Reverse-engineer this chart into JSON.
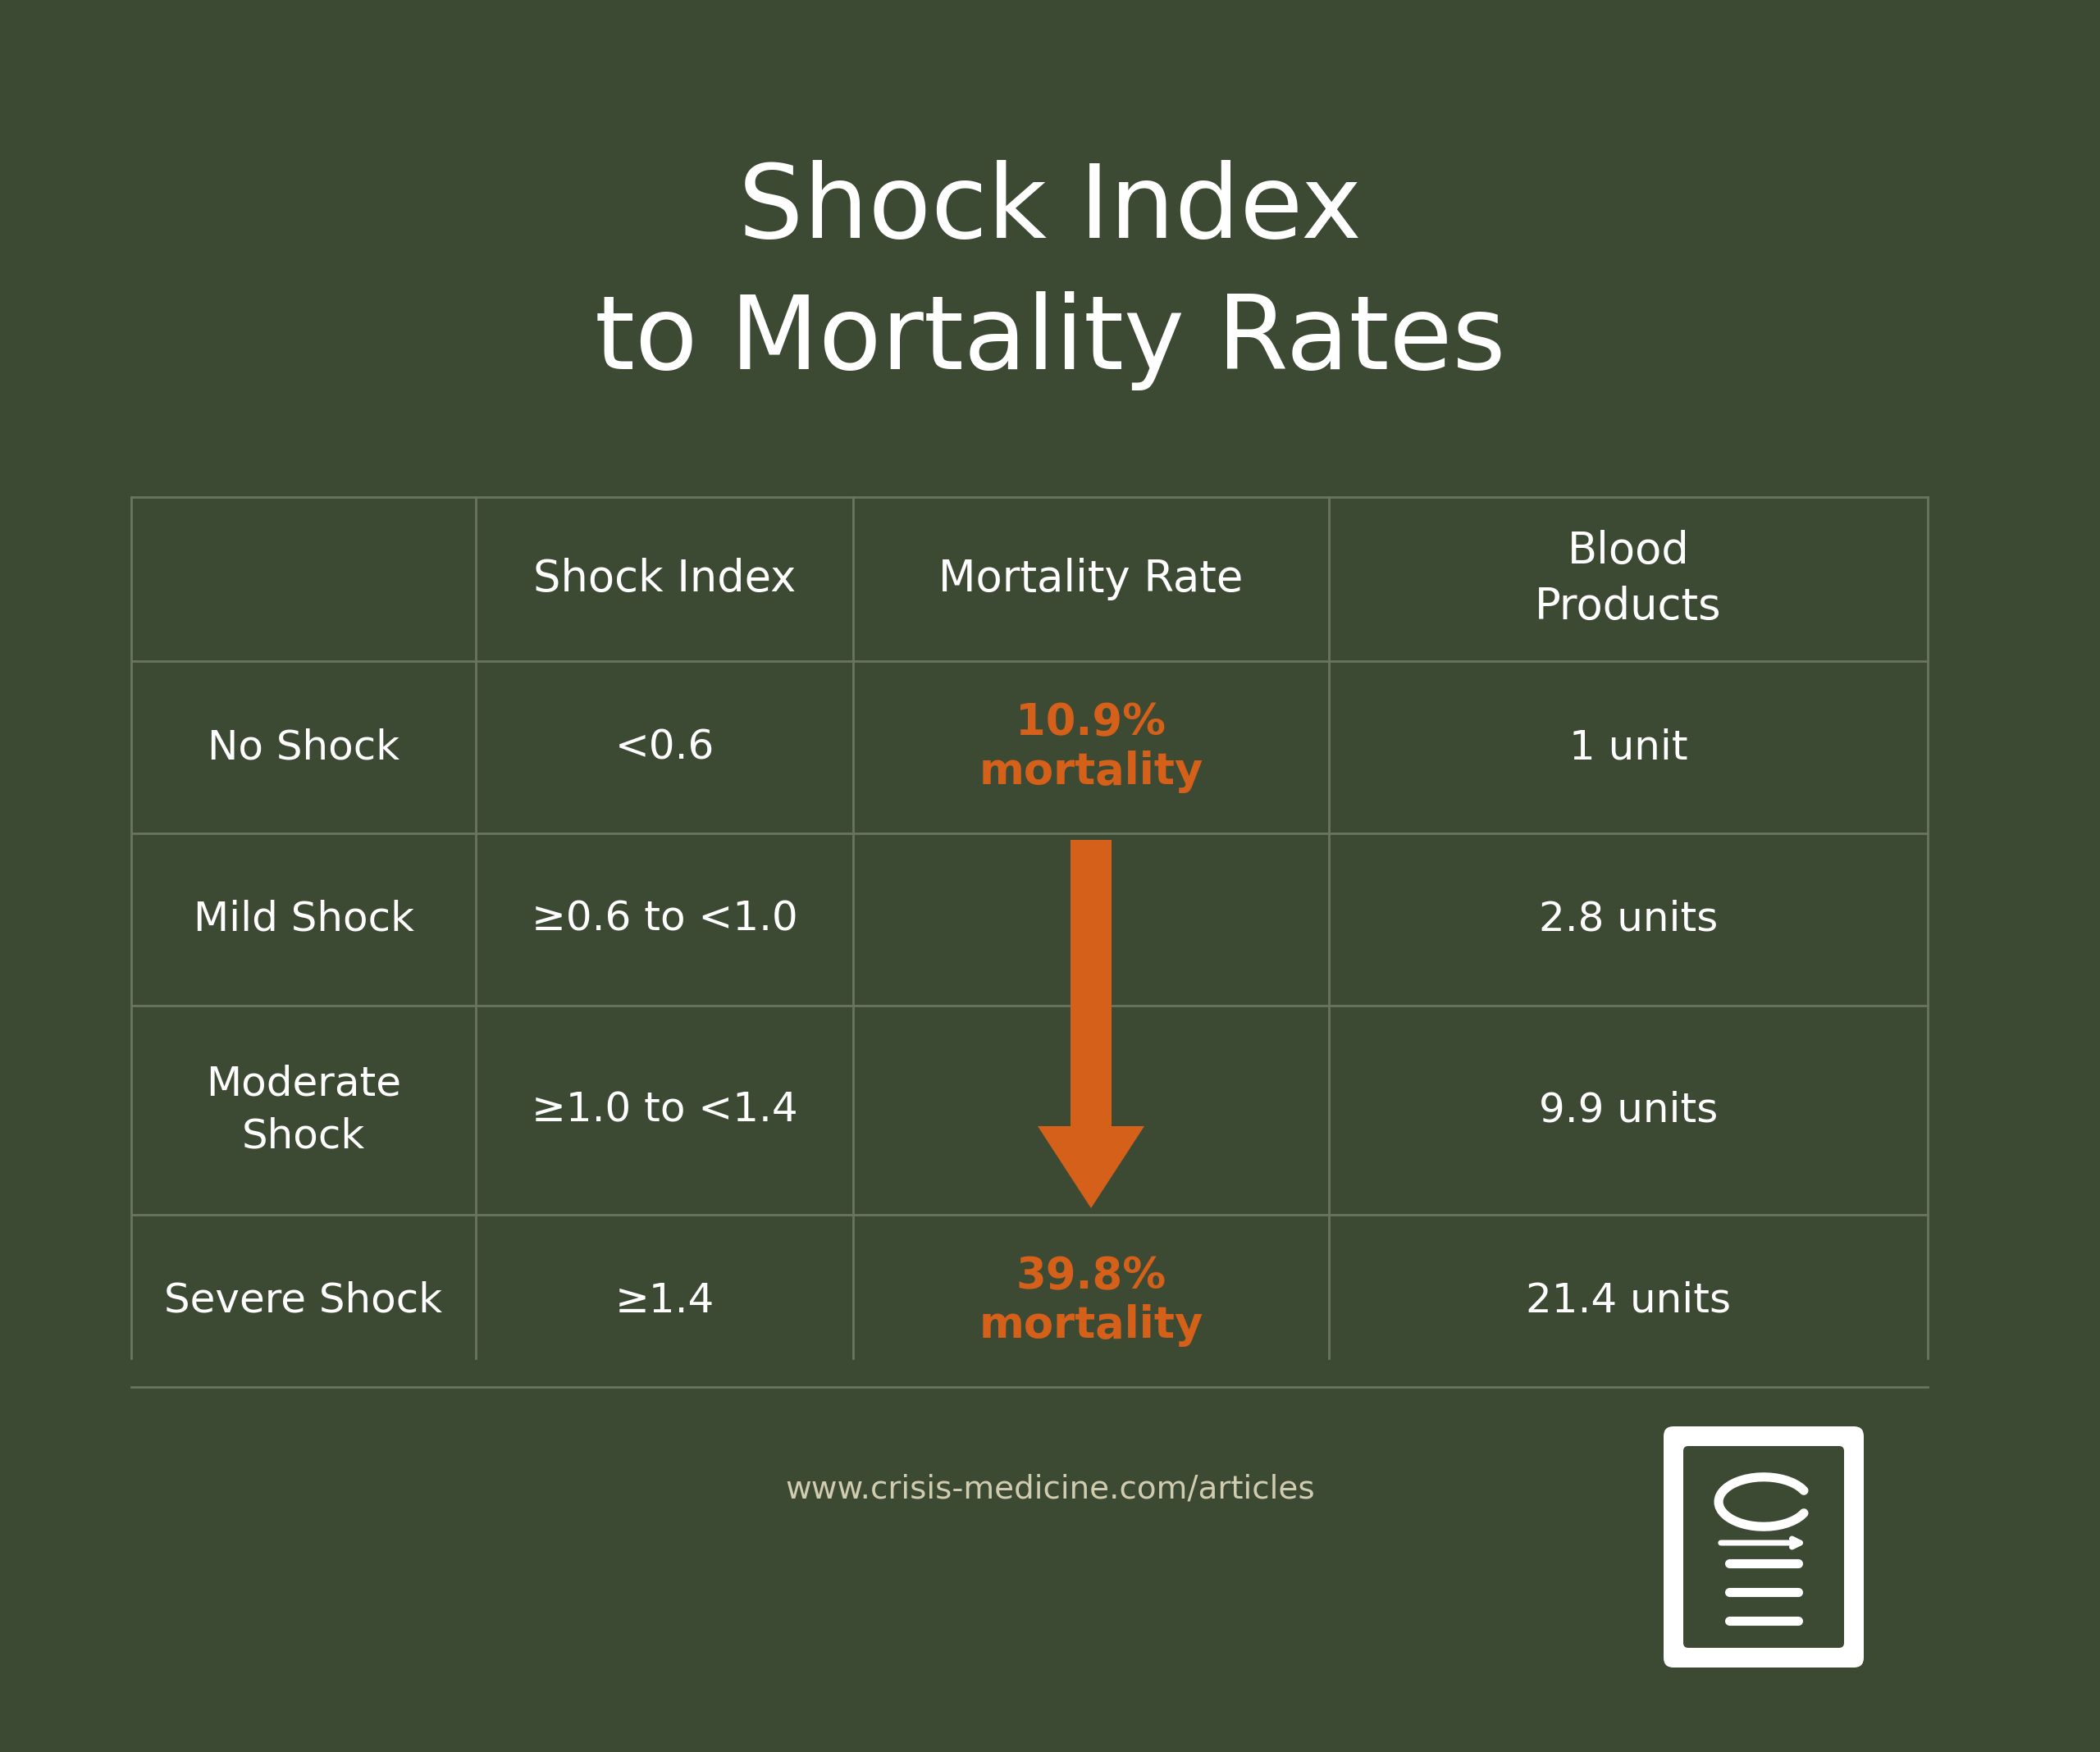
{
  "title_line1": "Shock Index",
  "title_line2": "to Mortality Rates",
  "background_color": "#3d4a33",
  "text_color": "#ffffff",
  "text_color_muted": "#d0ccb0",
  "grid_line_color": "#6a7560",
  "orange_color": "#d4601a",
  "col_headers": [
    "",
    "Shock Index",
    "Mortality Rate",
    "Blood\nProducts"
  ],
  "row_labels": [
    "No Shock",
    "Mild Shock",
    "Moderate\nShock",
    "Severe Shock"
  ],
  "shock_index": [
    "<0.6",
    "≥0.6 to <1.0",
    "≥1.0 to <1.4",
    "≥1.4"
  ],
  "blood_products": [
    "1 unit",
    "2.8 units",
    "9.9 units",
    "21.4 units"
  ],
  "mortality_top": "10.9%\nmortality",
  "mortality_bottom": "39.8%\nmortality",
  "url": "www.crisis-medicine.com/articles",
  "title_fontsize": 90,
  "header_fontsize": 38,
  "cell_fontsize": 36,
  "mortality_fontsize": 38,
  "url_fontsize": 28
}
